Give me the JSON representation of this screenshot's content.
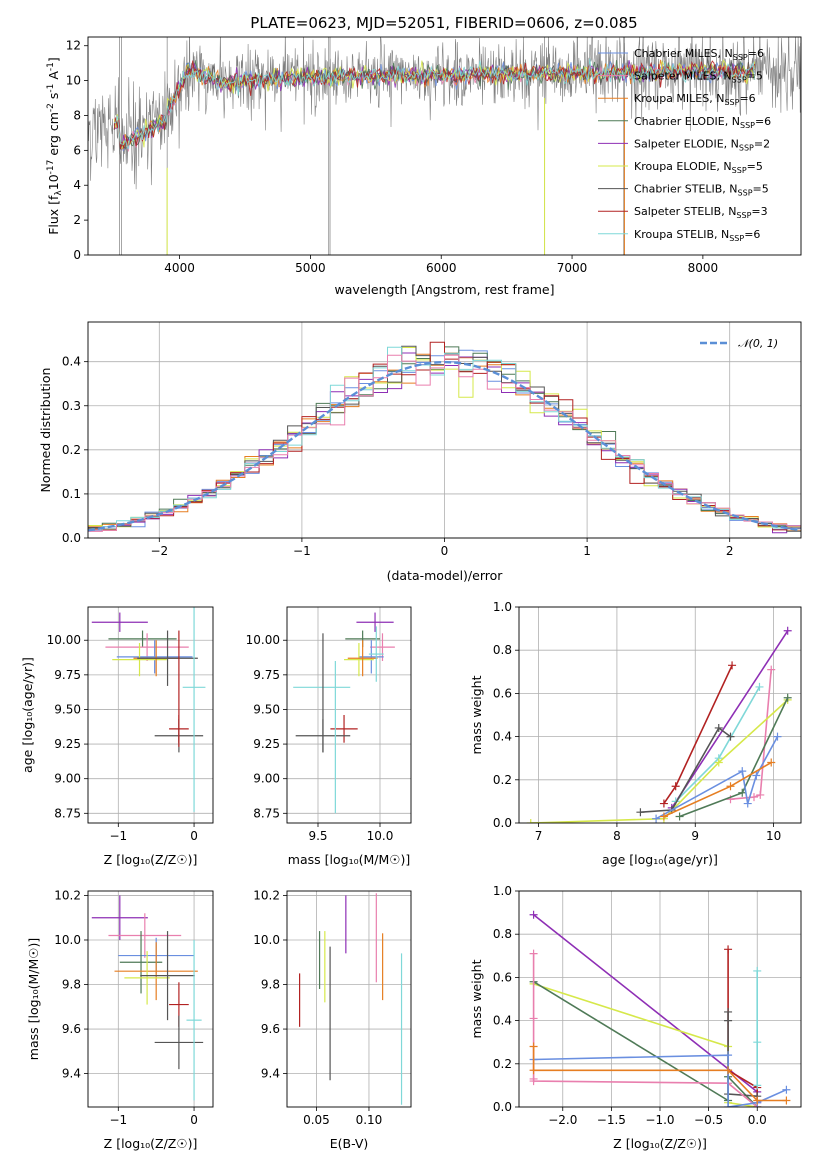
{
  "colors": [
    "#6a8fe0",
    "#e67e22",
    "#4f7a57",
    "#8e2fb5",
    "#d6e84a",
    "#555555",
    "#b22222",
    "#7fd8d8",
    "#e97fae"
  ],
  "chart_data": [
    {
      "id": "spectrum",
      "type": "line",
      "title": "PLATE=0623, MJD=52051, FIBERID=0606, z=0.085",
      "xlabel": "wavelength [Angstrom, rest frame]",
      "ylabel_prefix": "Flux [f",
      "ylabel_sub1": "λ",
      "ylabel_mid": "10",
      "ylabel_sup1": "-17",
      "ylabel_rest": " erg cm",
      "ylabel_sup2": "-2",
      "ylabel_rest2": " s",
      "ylabel_sup3": "-1",
      "ylabel_rest3": " A",
      "ylabel_sup4": "-1",
      "ylabel_end": "]",
      "xlim": [
        3300,
        8750
      ],
      "ylim": [
        0,
        12.5
      ],
      "xticks": [
        4000,
        5000,
        6000,
        7000,
        8000
      ],
      "yticks": [
        0,
        2,
        4,
        6,
        8,
        10,
        12
      ],
      "data_color": "#808080",
      "model_series": [
        {
          "base": "Chabrier MILES, N",
          "sub": "SSP",
          "n": "=6",
          "color": "#6a8fe0"
        },
        {
          "base": "Salpeter MILES, N",
          "sub": "SSP",
          "n": "=5",
          "color": "#e97fae"
        },
        {
          "base": "Kroupa MILES, N",
          "sub": "SSP",
          "n": "=6",
          "color": "#e67e22"
        },
        {
          "base": "Chabrier ELODIE, N",
          "sub": "SSP",
          "n": "=6",
          "color": "#4f7a57"
        },
        {
          "base": "Salpeter ELODIE, N",
          "sub": "SSP",
          "n": "=2",
          "color": "#8e2fb5"
        },
        {
          "base": "Kroupa ELODIE, N",
          "sub": "SSP",
          "n": "=5",
          "color": "#d6e84a"
        },
        {
          "base": "Chabrier STELIB, N",
          "sub": "SSP",
          "n": "=5",
          "color": "#555555"
        },
        {
          "base": "Salpeter STELIB, N",
          "sub": "SSP",
          "n": "=3",
          "color": "#b22222"
        },
        {
          "base": "Kroupa STELIB, N",
          "sub": "SSP",
          "n": "=6",
          "color": "#7fd8d8"
        }
      ],
      "legend": "right"
    },
    {
      "id": "residuals",
      "type": "line",
      "xlabel": "(data-model)/error",
      "ylabel": "Normed distribution",
      "xlim": [
        -2.5,
        2.5
      ],
      "ylim": [
        0,
        0.49
      ],
      "xticks": [
        -2,
        -1,
        0,
        1,
        2
      ],
      "yticks": [
        0.0,
        0.1,
        0.2,
        0.3,
        0.4
      ],
      "grid": true,
      "gaussian_label": "𝒩(0, 1)",
      "gaussian_color": "#5b8fd6",
      "legend": "top-right"
    },
    {
      "id": "age-Z",
      "type": "scatter",
      "xlabel": "Z [log₁₀(Z/Z☉)]",
      "ylabel": "age  [log₁₀(age/yr)]",
      "xlim": [
        -1.4,
        0.25
      ],
      "ylim": [
        8.68,
        10.24
      ],
      "xticks": [
        -1,
        0
      ],
      "yticks": [
        8.75,
        9.0,
        9.25,
        9.5,
        9.75,
        10.0
      ],
      "grid": true,
      "points": [
        {
          "x": -0.98,
          "y": 10.13,
          "xerr": 0.37,
          "yerr": 0.07,
          "c": 3
        },
        {
          "x": -0.68,
          "y": 10.01,
          "xerr": 0.45,
          "yerr": 0.06,
          "c": 2
        },
        {
          "x": -0.62,
          "y": 9.95,
          "xerr": 0.55,
          "yerr": 0.1,
          "c": 8
        },
        {
          "x": -0.52,
          "y": 9.88,
          "xerr": 0.5,
          "yerr": 0.12,
          "c": 0
        },
        {
          "x": -0.72,
          "y": 9.86,
          "xerr": 0.36,
          "yerr": 0.12,
          "c": 4
        },
        {
          "x": -0.5,
          "y": 9.87,
          "xerr": 0.3,
          "yerr": 0.13,
          "c": 1
        },
        {
          "x": -0.35,
          "y": 9.87,
          "xerr": 0.4,
          "yerr": 0.2,
          "c": 5
        },
        {
          "x": -0.2,
          "y": 9.36,
          "xerr": 0.13,
          "yerr": 0.1,
          "c": 6
        },
        {
          "x": -0.2,
          "y": 9.31,
          "xerr": 0.32,
          "yerr": 0.12,
          "c": 5
        },
        {
          "x": 0.0,
          "y": 9.66,
          "xerr": 0.15,
          "yerr": 0.9,
          "c": 7
        },
        {
          "x": -0.2,
          "y": 9.65,
          "xerr": 0.0,
          "yerr": 0.42,
          "c": 6
        }
      ]
    },
    {
      "id": "age-mass",
      "type": "scatter",
      "xlabel": "mass [log₁₀(M/M☉)]",
      "xlim": [
        9.25,
        10.25
      ],
      "ylim": [
        8.68,
        10.24
      ],
      "xticks": [
        9.5,
        10.0
      ],
      "yticks": [
        8.75,
        9.0,
        9.25,
        9.5,
        9.75,
        10.0
      ],
      "grid": true,
      "points": [
        {
          "x": 9.96,
          "y": 10.13,
          "xerr": 0.15,
          "yerr": 0.07,
          "c": 3
        },
        {
          "x": 9.86,
          "y": 10.01,
          "xerr": 0.14,
          "yerr": 0.06,
          "c": 2
        },
        {
          "x": 10.02,
          "y": 9.95,
          "xerr": 0.1,
          "yerr": 0.1,
          "c": 8
        },
        {
          "x": 9.93,
          "y": 9.88,
          "xerr": 0.1,
          "yerr": 0.12,
          "c": 0
        },
        {
          "x": 9.83,
          "y": 9.86,
          "xerr": 0.12,
          "yerr": 0.12,
          "c": 4
        },
        {
          "x": 9.86,
          "y": 9.87,
          "xerr": 0.12,
          "yerr": 0.13,
          "c": 1
        },
        {
          "x": 9.97,
          "y": 9.9,
          "xerr": 0.06,
          "yerr": 0.2,
          "c": 7
        },
        {
          "x": 9.71,
          "y": 9.36,
          "xerr": 0.11,
          "yerr": 0.1,
          "c": 6
        },
        {
          "x": 9.54,
          "y": 9.31,
          "xerr": 0.22,
          "yerr": 0.12,
          "c": 5
        },
        {
          "x": 9.53,
          "y": 9.66,
          "xerr": 0.23,
          "yerr": 0.0,
          "c": 7
        },
        {
          "x": 9.64,
          "y": 9.3,
          "xerr": 0.0,
          "yerr": 0.55,
          "c": 7
        },
        {
          "x": 9.54,
          "y": 9.62,
          "xerr": 0.0,
          "yerr": 0.43,
          "c": 5
        }
      ]
    },
    {
      "id": "weight-age",
      "type": "line",
      "xlabel": "age  [log₁₀(age/yr)]",
      "ylabel": "mass weight",
      "xlim": [
        6.75,
        10.35
      ],
      "ylim": [
        0,
        1
      ],
      "xticks": [
        7,
        8,
        9,
        10
      ],
      "yticks": [
        0.0,
        0.2,
        0.4,
        0.6,
        0.8,
        1.0
      ],
      "grid": true,
      "series": [
        {
          "c": 3,
          "x": [
            8.7,
            10.18
          ],
          "y": [
            0.07,
            0.89
          ]
        },
        {
          "c": 6,
          "x": [
            8.6,
            8.75,
            9.47
          ],
          "y": [
            0.09,
            0.17,
            0.73
          ]
        },
        {
          "c": 7,
          "x": [
            8.75,
            9.3,
            9.82
          ],
          "y": [
            0.1,
            0.3,
            0.63
          ]
        },
        {
          "c": 8,
          "x": [
            9.45,
            9.75,
            9.83,
            9.97
          ],
          "y": [
            0.11,
            0.12,
            0.13,
            0.71
          ]
        },
        {
          "c": 4,
          "x": [
            6.9,
            8.6,
            9.3,
            10.18
          ],
          "y": [
            0.0,
            0.02,
            0.28,
            0.57
          ]
        },
        {
          "c": 2,
          "x": [
            8.8,
            9.6,
            10.18
          ],
          "y": [
            0.03,
            0.14,
            0.58
          ]
        },
        {
          "c": 5,
          "x": [
            8.3,
            8.7,
            9.3,
            9.45
          ],
          "y": [
            0.05,
            0.06,
            0.44,
            0.4
          ]
        },
        {
          "c": 0,
          "x": [
            8.5,
            9.6,
            9.67,
            9.78,
            10.05
          ],
          "y": [
            0.02,
            0.24,
            0.09,
            0.22,
            0.4
          ]
        },
        {
          "c": 1,
          "x": [
            8.6,
            9.45,
            9.97
          ],
          "y": [
            0.03,
            0.17,
            0.28
          ]
        }
      ]
    },
    {
      "id": "mass-Z",
      "type": "scatter",
      "xlabel": "Z [log₁₀(Z/Z☉)]",
      "ylabel": "mass [log₁₀(M/M☉)]",
      "xlim": [
        -1.4,
        0.25
      ],
      "ylim": [
        9.25,
        10.22
      ],
      "xticks": [
        -1,
        0
      ],
      "yticks": [
        9.4,
        9.6,
        9.8,
        10.0,
        10.2
      ],
      "grid": true,
      "points": [
        {
          "x": -0.98,
          "y": 10.1,
          "xerr": 0.37,
          "yerr": 0.1,
          "c": 3
        },
        {
          "x": -0.65,
          "y": 10.02,
          "xerr": 0.48,
          "yerr": 0.1,
          "c": 8
        },
        {
          "x": -0.5,
          "y": 9.93,
          "xerr": 0.5,
          "yerr": 0.08,
          "c": 0
        },
        {
          "x": -0.7,
          "y": 9.9,
          "xerr": 0.28,
          "yerr": 0.14,
          "c": 2
        },
        {
          "x": -0.5,
          "y": 9.86,
          "xerr": 0.55,
          "yerr": 0.13,
          "c": 1
        },
        {
          "x": -0.62,
          "y": 9.83,
          "xerr": 0.3,
          "yerr": 0.12,
          "c": 4
        },
        {
          "x": -0.35,
          "y": 9.84,
          "xerr": 0.36,
          "yerr": 0.2,
          "c": 5
        },
        {
          "x": -0.2,
          "y": 9.71,
          "xerr": 0.13,
          "yerr": 0.1,
          "c": 6
        },
        {
          "x": -0.2,
          "y": 9.54,
          "xerr": 0.32,
          "yerr": 0.12,
          "c": 5
        },
        {
          "x": 0.0,
          "y": 9.64,
          "xerr": 0.1,
          "yerr": 0.36,
          "c": 7
        }
      ]
    },
    {
      "id": "mass-ebv",
      "type": "scatter",
      "xlabel": "E(B-V)",
      "xlim": [
        0.022,
        0.14
      ],
      "ylim": [
        9.25,
        10.22
      ],
      "xticks": [
        0.05,
        0.1
      ],
      "yticks": [
        9.4,
        9.6,
        9.8,
        10.0,
        10.2
      ],
      "grid": true,
      "points": [
        {
          "x": 0.034,
          "y": 9.73,
          "yerr": 0.12,
          "c": 6
        },
        {
          "x": 0.053,
          "y": 9.91,
          "yerr": 0.13,
          "c": 2
        },
        {
          "x": 0.058,
          "y": 9.88,
          "yerr": 0.16,
          "c": 4
        },
        {
          "x": 0.063,
          "y": 9.67,
          "yerr": 0.3,
          "c": 5
        },
        {
          "x": 0.078,
          "y": 10.07,
          "yerr": 0.13,
          "c": 3
        },
        {
          "x": 0.107,
          "y": 10.01,
          "yerr": 0.2,
          "c": 8
        },
        {
          "x": 0.113,
          "y": 9.88,
          "yerr": 0.15,
          "c": 1
        },
        {
          "x": 0.131,
          "y": 9.6,
          "yerr": 0.34,
          "c": 7
        }
      ]
    },
    {
      "id": "weight-Z",
      "type": "line",
      "xlabel": "Z [log₁₀(Z/Z☉)]",
      "ylabel": "mass weight",
      "xlim": [
        -2.45,
        0.45
      ],
      "ylim": [
        0,
        1
      ],
      "xticks": [
        -2.0,
        -1.5,
        -1.0,
        -0.5,
        0.0
      ],
      "yticks": [
        0.0,
        0.2,
        0.4,
        0.6,
        0.8,
        1.0
      ],
      "grid": true,
      "series": [
        {
          "c": 3,
          "x": [
            -2.3,
            0.0,
            0.0
          ],
          "y": [
            0.89,
            0.07,
            0.02
          ]
        },
        {
          "c": 6,
          "x": [
            -0.3,
            -0.3,
            0.0,
            0.0
          ],
          "y": [
            0.73,
            0.17,
            0.09,
            0.0
          ]
        },
        {
          "c": 4,
          "x": [
            -2.3,
            -0.3,
            -0.3,
            0.0
          ],
          "y": [
            0.57,
            0.28,
            0.02,
            0.0
          ]
        },
        {
          "c": 2,
          "x": [
            -2.3,
            -0.3,
            -0.3,
            0.0
          ],
          "y": [
            0.58,
            0.03,
            0.14,
            0.0
          ]
        },
        {
          "c": 5,
          "x": [
            -0.3,
            -0.3,
            -0.3,
            0.0
          ],
          "y": [
            0.44,
            0.4,
            0.06,
            0.05
          ]
        },
        {
          "c": 8,
          "x": [
            -2.3,
            -2.3,
            -2.3,
            -2.3,
            -0.3,
            0.0
          ],
          "y": [
            0.71,
            0.41,
            0.13,
            0.12,
            0.11,
            0.0
          ]
        },
        {
          "c": 0,
          "x": [
            -2.3,
            -0.3,
            -0.3,
            0.0,
            0.3
          ],
          "y": [
            0.22,
            0.24,
            0.0,
            0.02,
            0.08
          ]
        },
        {
          "c": 1,
          "x": [
            -2.3,
            -2.3,
            -0.3,
            0.0,
            0.3
          ],
          "y": [
            0.28,
            0.17,
            0.17,
            0.03,
            0.03
          ]
        },
        {
          "c": 7,
          "x": [
            0.0,
            0.0,
            0.0
          ],
          "y": [
            0.63,
            0.3,
            0.1
          ]
        }
      ]
    }
  ]
}
